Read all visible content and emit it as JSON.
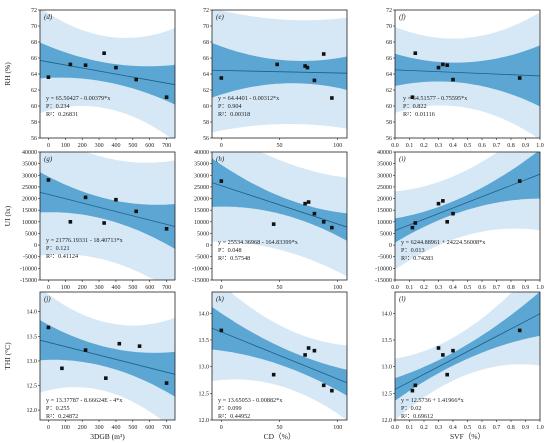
{
  "colors": {
    "outer_band": "#d6e8f5",
    "inner_band": "#5ba6d3",
    "line": "#1d5f8a",
    "points": "#111111"
  },
  "chart_data": [
    {
      "type": "scatter",
      "label": "(d)",
      "ylabel": "RH (%)",
      "xlabel": "",
      "xlim": [
        -50,
        750
      ],
      "ylim": [
        56,
        72
      ],
      "xticks": [
        "0",
        "100",
        "200",
        "300",
        "400",
        "500",
        "600",
        "700"
      ],
      "yticks": [
        "56",
        "58",
        "60",
        "62",
        "64",
        "66",
        "68",
        "70",
        "72"
      ],
      "x": [
        0,
        130,
        220,
        330,
        400,
        520,
        700
      ],
      "y": [
        63.6,
        65.2,
        65.1,
        66.6,
        64.8,
        63.3,
        61.1
      ],
      "fit": {
        "intercept": 65.50427,
        "slope": -0.00379
      },
      "band_outer": [
        4.5,
        6.5
      ],
      "band_inner": [
        1.2,
        2.2
      ],
      "annotations": [
        "y = 65.50427 - 0.00379*x",
        "P：0.234",
        "R²：0.26831"
      ]
    },
    {
      "type": "scatter",
      "label": "(e)",
      "ylabel": "",
      "xlabel": "",
      "xlim": [
        -8,
        108
      ],
      "ylim": [
        56,
        72
      ],
      "xticks": [
        "0",
        "50",
        "100"
      ],
      "yticks": [
        "56",
        "58",
        "60",
        "62",
        "64",
        "66",
        "68",
        "70",
        "72"
      ],
      "x": [
        0,
        48,
        72,
        74,
        80,
        88,
        95
      ],
      "y": [
        63.5,
        65.2,
        65.0,
        64.8,
        63.2,
        66.5,
        61.0
      ],
      "fit": {
        "intercept": 64.4401,
        "slope": -0.00312
      },
      "band_outer": [
        6.5,
        7.5
      ],
      "band_inner": [
        1.4,
        3.0
      ],
      "annotations": [
        "y = 64.4401 - 0.00312*x",
        "P：0.904",
        "R²：0.00318"
      ]
    },
    {
      "type": "scatter",
      "label": "(f)",
      "ylabel": "",
      "xlabel": "",
      "xlim": [
        0,
        1
      ],
      "ylim": [
        56,
        72
      ],
      "xticks": [
        "0.0",
        "0.1",
        "0.2",
        "0.3",
        "0.4",
        "0.5",
        "0.6",
        "0.7",
        "0.8",
        "0.9",
        "1.0"
      ],
      "yticks": [
        "56",
        "58",
        "60",
        "62",
        "64",
        "66",
        "68",
        "70",
        "72"
      ],
      "x": [
        0.12,
        0.14,
        0.3,
        0.33,
        0.36,
        0.4,
        0.86
      ],
      "y": [
        61.1,
        66.6,
        64.8,
        65.2,
        65.1,
        63.3,
        63.5
      ],
      "fit": {
        "intercept": 64.51577,
        "slope": -0.75595
      },
      "band_outer": [
        4.2,
        6.5
      ],
      "band_inner": [
        1.2,
        2.8
      ],
      "annotations": [
        "y = 64.51577 - 0.75595*x",
        "P：0.822",
        "R²：0.01116"
      ]
    },
    {
      "type": "scatter",
      "label": "(g)",
      "ylabel": "UI (lx)",
      "xlabel": "",
      "xlim": [
        -50,
        750
      ],
      "ylim": [
        -15000,
        40000
      ],
      "xticks": [
        "0",
        "100",
        "200",
        "300",
        "400",
        "500",
        "600",
        "700"
      ],
      "yticks": [
        "-15000",
        "-10000",
        "-5000",
        "0",
        "5000",
        "10000",
        "15000",
        "20000",
        "25000",
        "30000",
        "35000",
        "40000"
      ],
      "x": [
        0,
        130,
        220,
        330,
        400,
        520,
        700
      ],
      "y": [
        28000,
        10000,
        20500,
        9500,
        19500,
        14500,
        7000
      ],
      "fit": {
        "intercept": 21776.1933,
        "slope": -18.40713
      },
      "band_outer": [
        22000,
        27000
      ],
      "band_inner": [
        4500,
        8500
      ],
      "annotations": [
        "y = 21776.19331 - 18.40713*x",
        "P：0.121",
        "R²：0.41124"
      ]
    },
    {
      "type": "scatter",
      "label": "(h)",
      "ylabel": "",
      "xlabel": "",
      "xlim": [
        -8,
        108
      ],
      "ylim": [
        -15000,
        40000
      ],
      "xticks": [
        "0",
        "50",
        "100"
      ],
      "yticks": [
        "-15000",
        "-10000",
        "-5000",
        "0",
        "5000",
        "10000",
        "15000",
        "20000",
        "25000",
        "30000",
        "35000",
        "40000"
      ],
      "x": [
        0,
        45,
        72,
        75,
        80,
        88,
        95
      ],
      "y": [
        27500,
        9000,
        17800,
        18500,
        13500,
        10000,
        7500
      ],
      "fit": {
        "intercept": 25534.36968,
        "slope": -164.83399
      },
      "band_outer": [
        19000,
        24000
      ],
      "band_inner": [
        3500,
        9000
      ],
      "annotations": [
        "y = 25534.36968 - 164.83399*x",
        "P：0.048",
        "R²：0.57548"
      ]
    },
    {
      "type": "scatter",
      "label": "(i)",
      "ylabel": "",
      "xlabel": "",
      "xlim": [
        0,
        1
      ],
      "ylim": [
        -15000,
        40000
      ],
      "xticks": [
        "0.0",
        "0.1",
        "0.2",
        "0.3",
        "0.4",
        "0.5",
        "0.6",
        "0.7",
        "0.8",
        "0.9",
        "1.0"
      ],
      "yticks": [
        "-15000",
        "-10000",
        "-5000",
        "0",
        "5000",
        "10000",
        "15000",
        "20000",
        "25000",
        "30000",
        "35000",
        "40000"
      ],
      "x": [
        0.12,
        0.14,
        0.3,
        0.33,
        0.36,
        0.4,
        0.86
      ],
      "y": [
        7500,
        9500,
        17800,
        19000,
        10000,
        13500,
        27500
      ],
      "fit": {
        "intercept": 6244.88961,
        "slope": 24224.56008
      },
      "band_outer": [
        13500,
        20000
      ],
      "band_inner": [
        2800,
        7500
      ],
      "annotations": [
        "y = 6244.88961 + 24224.56008*x",
        "P：0.013",
        "R²：0.74283"
      ]
    },
    {
      "type": "scatter",
      "label": "(j)",
      "ylabel": "THI (°C)",
      "xlabel": "3DGB (m³)",
      "xlim": [
        -50,
        750
      ],
      "ylim": [
        11.8,
        14.4
      ],
      "xticks": [
        "0",
        "100",
        "200",
        "300",
        "400",
        "500",
        "600",
        "700"
      ],
      "yticks": [
        "12.0",
        "12.5",
        "13.0",
        "13.5",
        "14.0"
      ],
      "x": [
        0,
        80,
        220,
        340,
        420,
        540,
        700
      ],
      "y": [
        13.68,
        12.85,
        13.22,
        12.65,
        13.35,
        13.3,
        12.55
      ],
      "fit": {
        "intercept": 13.37787,
        "slope": -0.000866624
      },
      "band_outer": [
        0.7,
        1.05
      ],
      "band_inner": [
        0.2,
        0.4
      ],
      "annotations": [
        "y = 13.37787 - 8.66624E - 4*x",
        "P：0.255",
        "R²：0.24872"
      ]
    },
    {
      "type": "scatter",
      "label": "(k)",
      "ylabel": "",
      "xlabel": "CD（%）",
      "xlim": [
        -8,
        108
      ],
      "ylim": [
        12.0,
        14.4
      ],
      "xticks": [
        "0",
        "50",
        "100"
      ],
      "yticks": [
        "12.0",
        "12.5",
        "13.0",
        "13.5",
        "14.0"
      ],
      "x": [
        0,
        45,
        72,
        75,
        80,
        88,
        95
      ],
      "y": [
        13.68,
        12.85,
        13.22,
        13.35,
        13.3,
        12.65,
        12.55
      ],
      "fit": {
        "intercept": 13.65053,
        "slope": -0.00882
      },
      "band_outer": [
        0.55,
        0.9
      ],
      "band_inner": [
        0.16,
        0.35
      ],
      "annotations": [
        "y = 13.65053 - 0.00882*x",
        "P：0.099",
        "R²：0.44952"
      ]
    },
    {
      "type": "scatter",
      "label": "(l)",
      "ylabel": "",
      "xlabel": "SVF（%）",
      "xlim": [
        0,
        1
      ],
      "ylim": [
        12.0,
        14.4
      ],
      "xticks": [
        "0.0",
        "0.1",
        "0.2",
        "0.3",
        "0.4",
        "0.5",
        "0.6",
        "0.7",
        "0.8",
        "0.9",
        "1.0"
      ],
      "yticks": [
        "12.0",
        "12.5",
        "13.0",
        "13.5",
        "14.0"
      ],
      "x": [
        0.12,
        0.14,
        0.3,
        0.33,
        0.36,
        0.4,
        0.86
      ],
      "y": [
        12.55,
        12.65,
        13.35,
        13.22,
        12.85,
        13.3,
        13.68
      ],
      "fit": {
        "intercept": 12.5736,
        "slope": 1.41966
      },
      "band_outer": [
        0.4,
        0.75
      ],
      "band_inner": [
        0.12,
        0.3
      ],
      "annotations": [
        "y = 12.5736 + 1.41966*x",
        "P：0.02",
        "R²：0.69612"
      ]
    }
  ]
}
